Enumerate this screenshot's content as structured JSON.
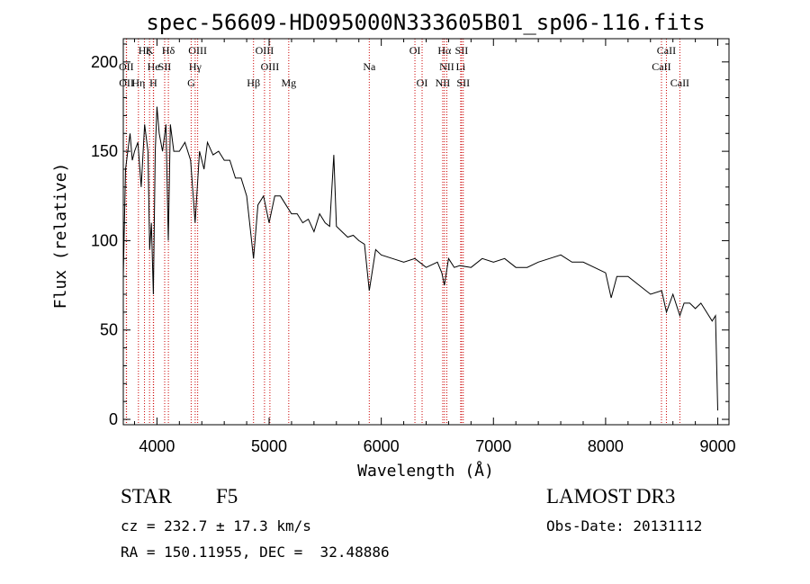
{
  "chart_data": {
    "type": "line",
    "title": "spec-56609-HD095000N333605B01_sp06-116.fits",
    "xlabel": "Wavelength (Å)",
    "ylabel": "Flux (relative)",
    "xlim": [
      3700,
      9100
    ],
    "ylim": [
      -3,
      213
    ],
    "x_ticks": [
      4000,
      5000,
      6000,
      7000,
      8000,
      9000
    ],
    "y_ticks": [
      0,
      50,
      100,
      150,
      200
    ],
    "grid": false,
    "series": [
      {
        "x": [
          3700,
          3720,
          3740,
          3760,
          3780,
          3800,
          3830,
          3860,
          3890,
          3920,
          3935,
          3950,
          3968,
          3985,
          4000,
          4020,
          4050,
          4080,
          4101,
          4120,
          4150,
          4200,
          4250,
          4300,
          4340,
          4380,
          4420,
          4450,
          4500,
          4550,
          4600,
          4650,
          4700,
          4750,
          4800,
          4861,
          4900,
          4950,
          5000,
          5050,
          5100,
          5150,
          5200,
          5250,
          5300,
          5350,
          5400,
          5450,
          5500,
          5540,
          5577,
          5600,
          5650,
          5700,
          5750,
          5800,
          5850,
          5893,
          5950,
          6000,
          6100,
          6200,
          6300,
          6400,
          6500,
          6540,
          6563,
          6600,
          6650,
          6700,
          6800,
          6900,
          7000,
          7100,
          7200,
          7300,
          7400,
          7500,
          7600,
          7700,
          7800,
          7900,
          8000,
          8050,
          8100,
          8200,
          8300,
          8400,
          8500,
          8542,
          8600,
          8662,
          8700,
          8750,
          8800,
          8850,
          8900,
          8950,
          8980,
          9000
        ],
        "y": [
          80,
          140,
          150,
          160,
          145,
          150,
          155,
          130,
          165,
          150,
          95,
          110,
          70,
          150,
          175,
          160,
          150,
          165,
          100,
          165,
          150,
          150,
          155,
          145,
          110,
          150,
          140,
          155,
          148,
          150,
          145,
          145,
          135,
          135,
          125,
          90,
          120,
          125,
          110,
          125,
          125,
          120,
          115,
          115,
          110,
          112,
          105,
          115,
          110,
          108,
          148,
          108,
          105,
          102,
          103,
          100,
          98,
          72,
          95,
          92,
          90,
          88,
          90,
          85,
          88,
          82,
          75,
          90,
          85,
          86,
          85,
          90,
          88,
          90,
          85,
          85,
          88,
          90,
          92,
          88,
          88,
          85,
          82,
          68,
          80,
          80,
          75,
          70,
          72,
          60,
          70,
          58,
          65,
          65,
          62,
          65,
          60,
          55,
          58,
          5
        ]
      }
    ],
    "lines": [
      {
        "name": "Hζ",
        "wave": 3889,
        "row": 0
      },
      {
        "name": "OII",
        "wave": 3727,
        "row": 1
      },
      {
        "name": "OII",
        "wave": 3729,
        "row": 2
      },
      {
        "name": "Hη",
        "wave": 3835,
        "row": 2
      },
      {
        "name": "K",
        "wave": 3934,
        "row": 0
      },
      {
        "name": "He",
        "wave": 3970,
        "row": 1
      },
      {
        "name": "SII",
        "wave": 4069,
        "row": 1
      },
      {
        "name": "H",
        "wave": 3968,
        "row": 2
      },
      {
        "name": "Hδ",
        "wave": 4102,
        "row": 0
      },
      {
        "name": "OIII",
        "wave": 4363,
        "row": 0
      },
      {
        "name": "Hγ",
        "wave": 4341,
        "row": 1
      },
      {
        "name": "G",
        "wave": 4305,
        "row": 2
      },
      {
        "name": "OIII",
        "wave": 4959,
        "row": 0
      },
      {
        "name": "OIII",
        "wave": 5007,
        "row": 1
      },
      {
        "name": "Hβ",
        "wave": 4861,
        "row": 2
      },
      {
        "name": "Mg",
        "wave": 5175,
        "row": 2
      },
      {
        "name": "Na",
        "wave": 5893,
        "row": 1
      },
      {
        "name": "OI",
        "wave": 6300,
        "row": 0
      },
      {
        "name": "OI",
        "wave": 6364,
        "row": 2
      },
      {
        "name": "Hα",
        "wave": 6563,
        "row": 0
      },
      {
        "name": "SII",
        "wave": 6716,
        "row": 0
      },
      {
        "name": "NII",
        "wave": 6584,
        "row": 1
      },
      {
        "name": "Li",
        "wave": 6708,
        "row": 1
      },
      {
        "name": "NII",
        "wave": 6548,
        "row": 2
      },
      {
        "name": "SII",
        "wave": 6731,
        "row": 2
      },
      {
        "name": "CaII",
        "wave": 8542,
        "row": 0
      },
      {
        "name": "CaII",
        "wave": 8498,
        "row": 1
      },
      {
        "name": "CaII",
        "wave": 8662,
        "row": 2
      }
    ],
    "colors": {
      "spectrum": "#000000",
      "line_markers": "#cc0000"
    }
  },
  "info": {
    "class": "STAR",
    "subclass": "F5",
    "survey": "LAMOST DR3",
    "cz": "cz = 232.7 ± 17.3 km/s",
    "obs_date": "Obs-Date: 20131112",
    "coords": "RA = 150.11955, DEC =  32.48886"
  }
}
